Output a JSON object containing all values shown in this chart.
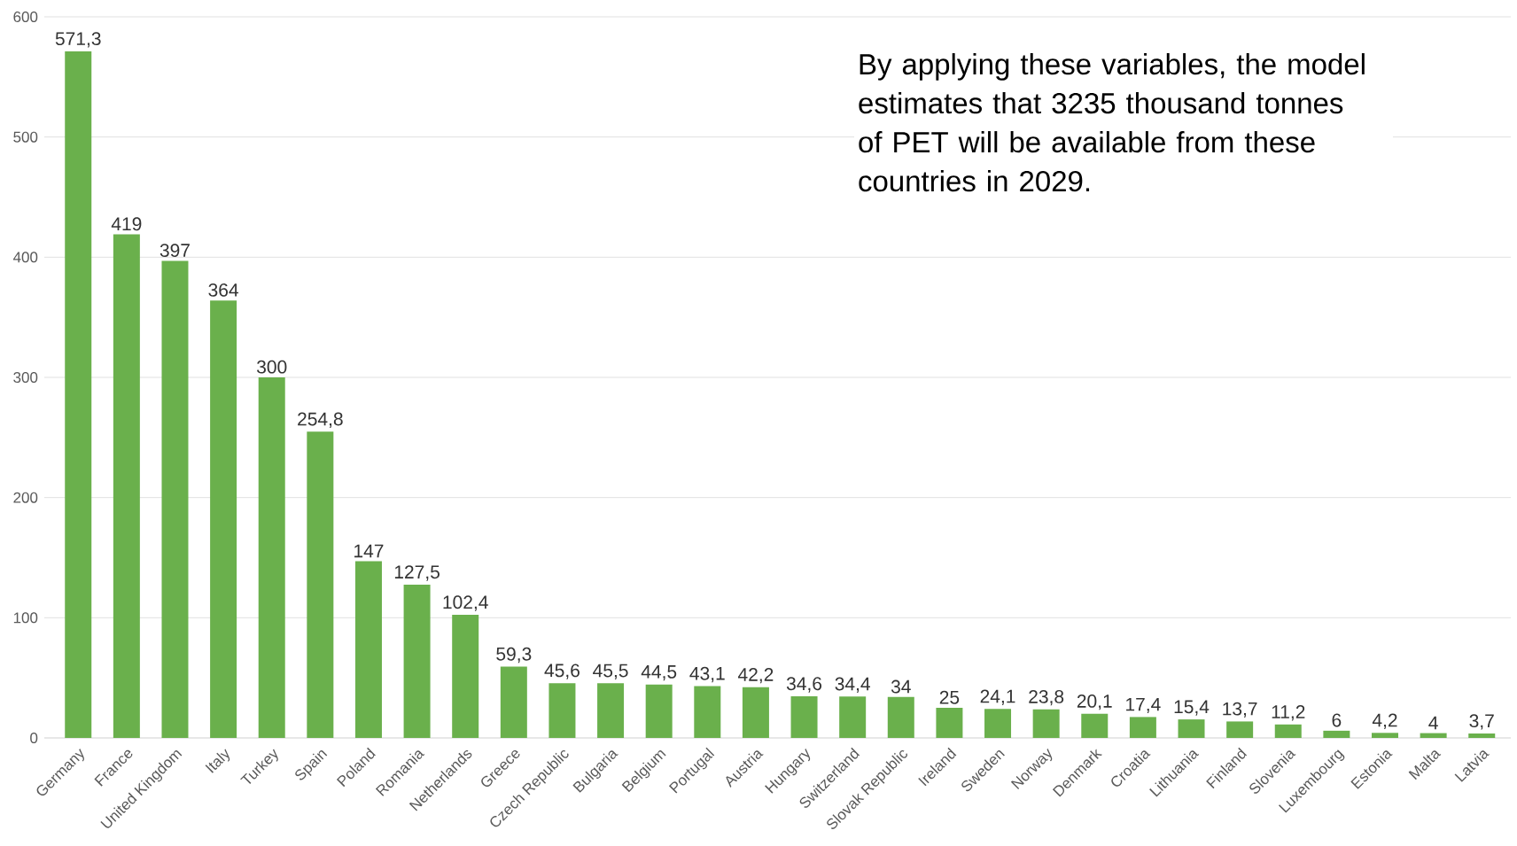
{
  "chart_data": {
    "type": "bar",
    "categories": [
      "Germany",
      "France",
      "United Kingdom",
      "Italy",
      "Turkey",
      "Spain",
      "Poland",
      "Romania",
      "Netherlands",
      "Greece",
      "Czech Republic",
      "Bulgaria",
      "Belgium",
      "Portugal",
      "Austria",
      "Hungary",
      "Switzerland",
      "Slovak Republic",
      "Ireland",
      "Sweden",
      "Norway",
      "Denmark",
      "Croatia",
      "Lithuania",
      "Finland",
      "Slovenia",
      "Luxembourg",
      "Estonia",
      "Malta",
      "Latvia"
    ],
    "values": [
      571.3,
      419,
      397,
      364,
      300,
      254.8,
      147,
      127.5,
      102.4,
      59.3,
      45.6,
      45.5,
      44.5,
      43.1,
      42.2,
      34.6,
      34.4,
      34,
      25,
      24.1,
      23.8,
      20.1,
      17.4,
      15.4,
      13.7,
      11.2,
      6,
      4.2,
      4,
      3.7
    ],
    "value_labels": [
      "571,3",
      "419",
      "397",
      "364",
      "300",
      "254,8",
      "147",
      "127,5",
      "102,4",
      "59,3",
      "45,6",
      "45,5",
      "44,5",
      "43,1",
      "42,2",
      "34,6",
      "34,4",
      "34",
      "25",
      "24,1",
      "23,8",
      "20,1",
      "17,4",
      "15,4",
      "13,7",
      "11,2",
      "6",
      "4,2",
      "4",
      "3,7"
    ],
    "color": "#6ab04c",
    "ylim": [
      0,
      600
    ],
    "yticks": [
      0,
      100,
      200,
      300,
      400,
      500,
      600
    ],
    "grid": "y",
    "annotations": [
      "By applying these variables, the model estimates that 3235 thousand tonnes of PET will be available from these countries in 2029."
    ]
  }
}
